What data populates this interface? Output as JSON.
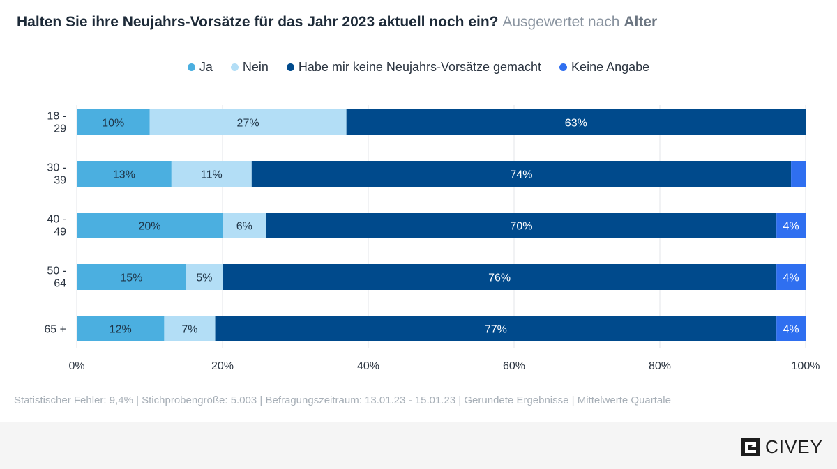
{
  "title": {
    "main": "Halten Sie ihre Neujahrs-Vorsätze für das Jahr 2023 aktuell noch ein?",
    "sub_prefix": "Ausgewertet nach",
    "sub_bold": "Alter"
  },
  "chart_data": {
    "type": "bar",
    "orientation": "horizontal",
    "stacked": true,
    "categories": [
      [
        "18 -",
        "29"
      ],
      [
        "30 -",
        "39"
      ],
      [
        "40 -",
        "49"
      ],
      [
        "50 -",
        "64"
      ],
      [
        "65 +"
      ]
    ],
    "series": [
      {
        "name": "Ja",
        "color": "#4bafe0",
        "label_color": "#1f3446",
        "values": [
          10,
          13,
          20,
          15,
          12
        ],
        "labels": [
          "10%",
          "13%",
          "20%",
          "15%",
          "12%"
        ]
      },
      {
        "name": "Nein",
        "color": "#b3def6",
        "label_color": "#1f3446",
        "values": [
          27,
          11,
          6,
          5,
          7
        ],
        "labels": [
          "27%",
          "11%",
          "6%",
          "5%",
          "7%"
        ]
      },
      {
        "name": "Habe mir keine Neujahrs-Vorsätze gemacht",
        "color": "#004a8c",
        "label_color": "#ffffff",
        "values": [
          63,
          74,
          70,
          76,
          77
        ],
        "labels": [
          "63%",
          "74%",
          "70%",
          "76%",
          "77%"
        ]
      },
      {
        "name": "Keine Angabe",
        "color": "#2f6ff0",
        "label_color": "#ffffff",
        "values": [
          0,
          2,
          4,
          4,
          4
        ],
        "labels": [
          "",
          "",
          "4%",
          "4%",
          "4%"
        ]
      }
    ],
    "xlim": [
      0,
      100
    ],
    "xticks": [
      "0%",
      "20%",
      "40%",
      "60%",
      "80%",
      "100%"
    ],
    "grid": true,
    "legend_position": "top-center"
  },
  "footer": {
    "note": "Statistischer Fehler: 9,4% | Stichprobengröße: 5.003 | Befragungszeitraum: 13.01.23 - 15.01.23 | Gerundete Ergebnisse | Mittelwerte Quartale",
    "logo_text": "CIVEY"
  }
}
